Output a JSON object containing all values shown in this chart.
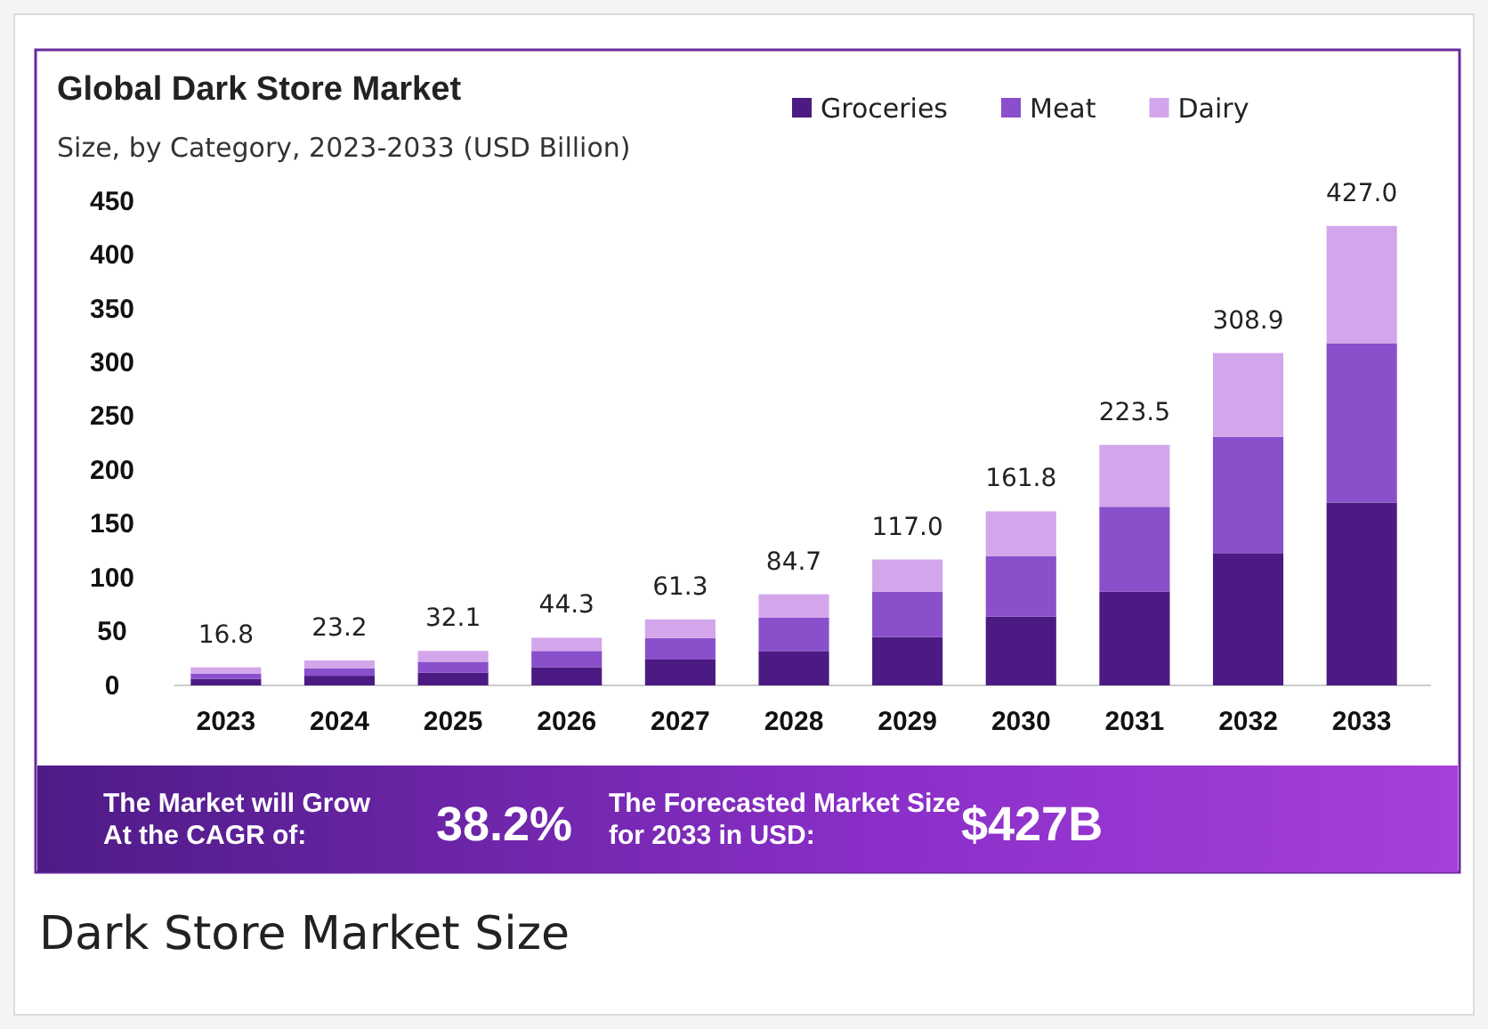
{
  "chart_data": {
    "type": "bar",
    "title": "Global Dark Store Market",
    "subtitle": "Size, by Category, 2023-2033 (USD Billion)",
    "categories": [
      "2023",
      "2024",
      "2025",
      "2026",
      "2027",
      "2028",
      "2029",
      "2030",
      "2031",
      "2032",
      "2033"
    ],
    "series": [
      {
        "name": "Groceries",
        "color": "#4b1a82",
        "values": [
          6,
          9,
          12,
          17,
          24,
          32,
          45,
          64,
          87,
          123,
          170
        ]
      },
      {
        "name": "Meat",
        "color": "#8a4fca",
        "values": [
          5,
          7,
          10,
          15,
          20,
          31,
          42,
          56,
          79,
          108,
          148
        ]
      },
      {
        "name": "Dairy",
        "color": "#d3a6ec",
        "values": [
          5.8,
          7.2,
          10.1,
          12.3,
          17.3,
          21.7,
          30,
          41.8,
          57.5,
          77.9,
          109
        ]
      }
    ],
    "stacked": true,
    "totals": [
      "16.8",
      "23.2",
      "32.1",
      "44.3",
      "61.3",
      "84.7",
      "117.0",
      "161.8",
      "223.5",
      "308.9",
      "427.0"
    ],
    "ylim": [
      0,
      450
    ],
    "yticks": [
      0,
      50,
      100,
      150,
      200,
      250,
      300,
      350,
      400,
      450
    ],
    "grid": false,
    "legend": "top right",
    "annotations": [
      "The Market will Grow At the CAGR of:",
      "38.2%",
      "The Forecasted Market Size for 2033 in USD:",
      "$427B",
      "Dark Store Market Size"
    ]
  }
}
